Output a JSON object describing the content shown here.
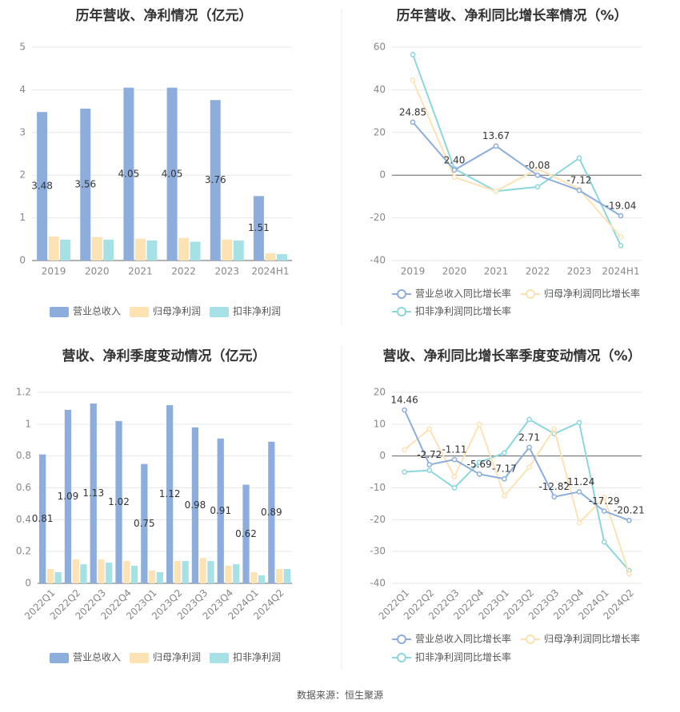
{
  "source": "数据来源：恒生聚源",
  "colors": {
    "revenue": "#8DAEDC",
    "net_profit": "#FDE2B4",
    "deducted_profit": "#A6E1E6",
    "revenue_line": "#8DAEDC",
    "net_line": "#FDE2B4",
    "deducted_line": "#8CD7DC",
    "grid": "#E4E7EE",
    "axis_text": "#888888",
    "title": "#333333"
  },
  "chart_data": [
    {
      "id": "annual-values",
      "type": "bar",
      "title": "历年营收、净利情况（亿元）",
      "categories": [
        "2019",
        "2020",
        "2021",
        "2022",
        "2023",
        "2024H1"
      ],
      "ylim": [
        0,
        5
      ],
      "yticks": [
        0,
        1,
        2,
        3,
        4,
        5
      ],
      "series": [
        {
          "name": "营业总收入",
          "values": [
            3.48,
            3.56,
            4.05,
            4.05,
            3.76,
            1.51
          ]
        },
        {
          "name": "归母净利润",
          "values": [
            0.56,
            0.55,
            0.51,
            0.53,
            0.49,
            0.17
          ]
        },
        {
          "name": "扣非净利润",
          "values": [
            0.49,
            0.49,
            0.47,
            0.44,
            0.47,
            0.15
          ]
        }
      ],
      "data_labels": [
        "3.48",
        "3.56",
        "4.05",
        "4.05",
        "3.76",
        "1.51"
      ],
      "grid": true,
      "legend_position": "bottom"
    },
    {
      "id": "annual-growth",
      "type": "line",
      "title": "历年营收、净利同比增长率情况（%）",
      "categories": [
        "2019",
        "2020",
        "2021",
        "2022",
        "2023",
        "2024H1"
      ],
      "ylim": [
        -40,
        60
      ],
      "yticks": [
        -40,
        -20,
        0,
        20,
        40,
        60
      ],
      "series": [
        {
          "name": "营业总收入同比增长率",
          "values": [
            24.85,
            2.4,
            13.67,
            -0.08,
            -7.12,
            -19.04
          ]
        },
        {
          "name": "归母净利润同比增长率",
          "values": [
            44.5,
            -1.0,
            -7.5,
            3.0,
            -6.5,
            -29.0
          ]
        },
        {
          "name": "扣非净利润同比增长率",
          "values": [
            56.5,
            3.0,
            -7.5,
            -5.5,
            8.0,
            -33.0
          ]
        }
      ],
      "data_labels": [
        "24.85",
        "2.40",
        "13.67",
        "-0.08",
        "-7.12",
        "-19.04"
      ],
      "grid": true,
      "legend_position": "bottom"
    },
    {
      "id": "quarterly-values",
      "type": "bar",
      "title": "营收、净利季度变动情况（亿元）",
      "categories": [
        "2022Q1",
        "2022Q2",
        "2022Q3",
        "2022Q4",
        "2023Q1",
        "2023Q2",
        "2023Q3",
        "2023Q4",
        "2024Q1",
        "2024Q2"
      ],
      "ylim": [
        0,
        1.2
      ],
      "yticks": [
        "0",
        "0.2",
        "0.4",
        "0.6",
        "0.8",
        "1",
        "1.2"
      ],
      "series": [
        {
          "name": "营业总收入",
          "values": [
            0.81,
            1.09,
            1.13,
            1.02,
            0.75,
            1.12,
            0.98,
            0.91,
            0.62,
            0.89
          ]
        },
        {
          "name": "归母净利润",
          "values": [
            0.09,
            0.15,
            0.15,
            0.14,
            0.08,
            0.14,
            0.16,
            0.11,
            0.07,
            0.09
          ]
        },
        {
          "name": "扣非净利润",
          "values": [
            0.07,
            0.12,
            0.13,
            0.11,
            0.07,
            0.14,
            0.14,
            0.12,
            0.05,
            0.09
          ]
        }
      ],
      "data_labels": [
        "0.81",
        "1.09",
        "1.13",
        "1.02",
        "0.75",
        "1.12",
        "0.98",
        "0.91",
        "0.62",
        "0.89"
      ],
      "grid": true,
      "legend_position": "bottom"
    },
    {
      "id": "quarterly-growth",
      "type": "line",
      "title": "营收、净利同比增长率季度变动情况（%）",
      "categories": [
        "2022Q1",
        "2022Q2",
        "2022Q3",
        "2022Q4",
        "2023Q1",
        "2023Q2",
        "2023Q3",
        "2023Q4",
        "2024Q1",
        "2024Q2"
      ],
      "ylim": [
        -40,
        20
      ],
      "yticks": [
        -40,
        -30,
        -20,
        -10,
        0,
        10,
        20
      ],
      "series": [
        {
          "name": "营业总收入同比增长率",
          "values": [
            14.46,
            -2.72,
            -1.11,
            -5.69,
            -7.17,
            2.71,
            -12.82,
            -11.24,
            -17.29,
            -20.21
          ]
        },
        {
          "name": "归母净利润同比增长率",
          "values": [
            2.0,
            8.5,
            -6.5,
            10.0,
            -12.5,
            -3.5,
            8.5,
            -21.0,
            -13.0,
            -37.0
          ]
        },
        {
          "name": "扣非净利润同比增长率",
          "values": [
            -5.0,
            -4.5,
            -10.0,
            -2.0,
            1.0,
            11.5,
            7.0,
            10.5,
            -27.0,
            -36.0
          ]
        }
      ],
      "data_labels": [
        "14.46",
        "-2.72",
        "-1.11",
        "-5.69",
        "-7.17",
        "2.71",
        "-12.82",
        "-11.24",
        "-17.29",
        "-20.21"
      ],
      "grid": true,
      "legend_position": "bottom"
    }
  ]
}
